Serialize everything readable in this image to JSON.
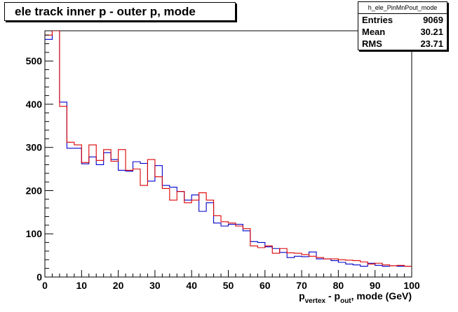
{
  "title": "ele track inner p - outer p, mode",
  "stats": {
    "name": "h_ele_PinMnPout_mode",
    "rows": [
      {
        "label": "Entries",
        "value": "9069"
      },
      {
        "label": "Mean",
        "value": "30.21"
      },
      {
        "label": "RMS",
        "value": "23.71"
      }
    ]
  },
  "chart_data": {
    "type": "line",
    "title": "ele track inner p - outer p, mode",
    "xlabel": {
      "main": "p",
      "sub1": "vertex",
      "mid": " - p",
      "sub2": "out",
      "tail": ", mode (GeV)"
    },
    "ylabel": "",
    "xlim": [
      0,
      100
    ],
    "ylim": [
      0,
      570
    ],
    "x_ticks": [
      0,
      10,
      20,
      30,
      40,
      50,
      60,
      70,
      80,
      90,
      100
    ],
    "y_ticks": [
      0,
      100,
      200,
      300,
      400,
      500
    ],
    "bin_width": 2,
    "series": [
      {
        "color": "#0000cc",
        "values": [
          550,
          580,
          405,
          298,
          298,
          262,
          278,
          260,
          288,
          272,
          247,
          245,
          267,
          263,
          222,
          258,
          212,
          208,
          198,
          178,
          190,
          152,
          172,
          125,
          118,
          122,
          122,
          107,
          82,
          80,
          70,
          66,
          57,
          45,
          48,
          47,
          58,
          42,
          42,
          38,
          34,
          30,
          28,
          25,
          32,
          27,
          25,
          26,
          25,
          25
        ]
      },
      {
        "color": "#dd0000",
        "values": [
          560,
          570,
          395,
          312,
          306,
          265,
          306,
          270,
          295,
          268,
          295,
          247,
          250,
          212,
          272,
          232,
          205,
          178,
          198,
          172,
          178,
          195,
          178,
          142,
          128,
          125,
          118,
          112,
          72,
          68,
          72,
          55,
          66,
          56,
          55,
          52,
          48,
          45,
          42,
          42,
          40,
          39,
          38,
          35,
          30,
          32,
          28,
          26,
          27,
          25
        ]
      }
    ]
  }
}
